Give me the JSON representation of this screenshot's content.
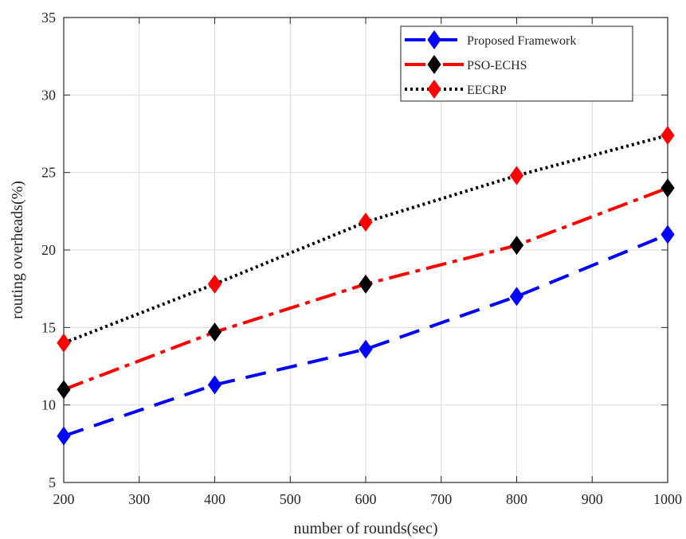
{
  "chart_data": {
    "type": "line",
    "title": "",
    "xlabel": "number of rounds(sec)",
    "ylabel": "routing overheads(%)",
    "xlim": [
      200,
      1000
    ],
    "ylim": [
      5,
      35
    ],
    "xticks": [
      200,
      300,
      400,
      500,
      600,
      700,
      800,
      900,
      1000
    ],
    "yticks": [
      5,
      10,
      15,
      20,
      25,
      30,
      35
    ],
    "grid": true,
    "legend_position": "top-right",
    "x": [
      200,
      400,
      600,
      800,
      1000
    ],
    "series": [
      {
        "name": "Proposed Framework",
        "values": [
          8,
          11.3,
          13.6,
          17,
          21
        ],
        "color": "#0000ff",
        "marker_color": "#0000ff",
        "line_style": "dashed"
      },
      {
        "name": "PSO-ECHS",
        "values": [
          11,
          14.7,
          17.8,
          20.3,
          24
        ],
        "color": "#ff0000",
        "marker_color": "#000000",
        "line_style": "dash-dot"
      },
      {
        "name": "EECRP",
        "values": [
          14,
          17.8,
          21.8,
          24.8,
          27.4
        ],
        "color": "#000000",
        "marker_color": "#ff0000",
        "line_style": "dotted"
      }
    ]
  }
}
